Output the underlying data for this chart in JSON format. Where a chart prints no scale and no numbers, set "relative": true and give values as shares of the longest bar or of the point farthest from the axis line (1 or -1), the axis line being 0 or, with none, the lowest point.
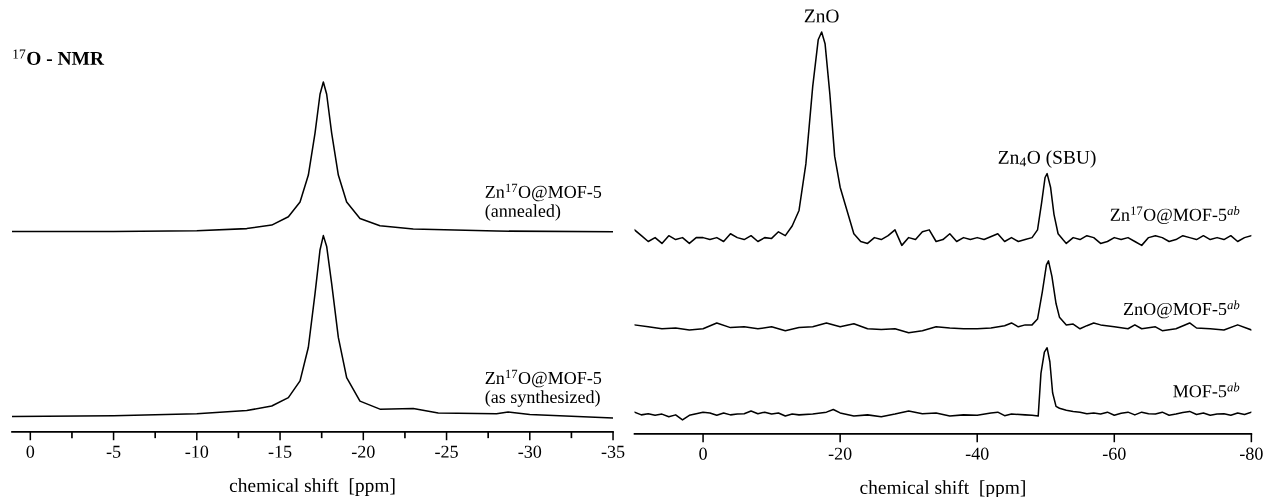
{
  "chart_data": [
    {
      "type": "line",
      "relative": true,
      "title": "$^{17}$O - NMR",
      "xlabel": "chemical shift  [ppm]",
      "xlim": [
        1.1,
        -35
      ],
      "xticks": [
        0,
        {
          "value": -2.5,
          "label": null
        },
        -5,
        {
          "value": -7.5,
          "label": null
        },
        -10,
        {
          "value": -12.5,
          "label": null
        },
        -15,
        {
          "value": -17.5,
          "label": null
        },
        -20,
        {
          "value": -22.5,
          "label": null
        },
        -25,
        {
          "value": -27.5,
          "label": null
        },
        -30,
        {
          "value": -32.5,
          "label": null
        },
        -35
      ],
      "series": [
        {
          "name": "Zn$^{17}$O@MOF-5\n(annealed)",
          "color": "#000000",
          "x": [
            1.1,
            -5,
            -10,
            -13,
            -14.5,
            -15.5,
            -16.2,
            -16.7,
            -17.1,
            -17.4,
            -17.6,
            -17.8,
            -18.1,
            -18.5,
            -19,
            -19.8,
            -21,
            -23,
            -28,
            -35
          ],
          "values": [
            0.573,
            0.573,
            0.575,
            0.581,
            0.591,
            0.615,
            0.657,
            0.734,
            0.854,
            0.965,
            1.0,
            0.965,
            0.854,
            0.734,
            0.657,
            0.61,
            0.589,
            0.58,
            0.574,
            0.572
          ]
        },
        {
          "name": "Zn$^{17}$O@MOF-5\n(as synthesized)",
          "color": "#000000",
          "x": [
            1.1,
            -5,
            -10,
            -13,
            -14.5,
            -15.5,
            -16.2,
            -16.7,
            -17.1,
            -17.4,
            -17.6,
            -17.8,
            -18.1,
            -18.5,
            -19,
            -19.8,
            -21,
            -23,
            -24.5,
            -28,
            -28.7,
            -30,
            -35
          ],
          "values": [
            0.044,
            0.046,
            0.052,
            0.061,
            0.074,
            0.098,
            0.146,
            0.242,
            0.395,
            0.52,
            0.561,
            0.53,
            0.424,
            0.27,
            0.155,
            0.088,
            0.065,
            0.067,
            0.054,
            0.052,
            0.057,
            0.05,
            0.04
          ]
        }
      ]
    },
    {
      "type": "line",
      "relative": true,
      "xlabel": "chemical shift  [ppm]",
      "xlim": [
        10,
        -80
      ],
      "xticks": [
        0,
        -20,
        -40,
        -60,
        -80
      ],
      "annotations": [
        {
          "text": "ZnO",
          "x": -17.3,
          "y": 1.0
        },
        {
          "text": "Zn$_{4}$O (SBU)",
          "x": -50.2,
          "y": 0.635
        }
      ],
      "series": [
        {
          "name": "Zn$^{17}$O@MOF-5$^{ab}$",
          "color": "#000000",
          "x": [
            10,
            9,
            8,
            7,
            6,
            5,
            4,
            3,
            2,
            1,
            0,
            -1,
            -2,
            -3,
            -4,
            -5,
            -6,
            -7,
            -8,
            -9,
            -10,
            -11,
            -12,
            -13,
            -14,
            -15,
            -16,
            -16.8,
            -17.3,
            -17.8,
            -18.5,
            -19.2,
            -20,
            -21,
            -22,
            -23,
            -24,
            -25,
            -26,
            -27,
            -28,
            -29,
            -30,
            -31,
            -32,
            -33,
            -34,
            -35,
            -36,
            -37,
            -38,
            -39,
            -40,
            -41,
            -43,
            -44,
            -45,
            -46,
            -47,
            -48,
            -48.8,
            -49.4,
            -49.9,
            -50.2,
            -50.7,
            -51.2,
            -51.8,
            -52.5,
            -53,
            -54,
            -55,
            -56,
            -57,
            -58,
            -59,
            -60,
            -61,
            -62,
            -63,
            -64,
            -65,
            -66,
            -67,
            -68,
            -69,
            -70,
            -71,
            -72,
            -73,
            -74,
            -75,
            -76,
            -77,
            -78,
            -79,
            -80
          ],
          "values": [
            0.49,
            0.475,
            0.46,
            0.47,
            0.455,
            0.475,
            0.465,
            0.47,
            0.455,
            0.47,
            0.47,
            0.465,
            0.47,
            0.46,
            0.48,
            0.47,
            0.465,
            0.475,
            0.46,
            0.47,
            0.468,
            0.485,
            0.475,
            0.5,
            0.54,
            0.66,
            0.86,
            0.98,
            1.0,
            0.97,
            0.84,
            0.68,
            0.6,
            0.54,
            0.48,
            0.46,
            0.455,
            0.47,
            0.465,
            0.475,
            0.49,
            0.45,
            0.47,
            0.465,
            0.485,
            0.49,
            0.46,
            0.465,
            0.48,
            0.46,
            0.47,
            0.465,
            0.47,
            0.465,
            0.48,
            0.46,
            0.47,
            0.46,
            0.465,
            0.47,
            0.49,
            0.56,
            0.625,
            0.635,
            0.6,
            0.53,
            0.48,
            0.465,
            0.455,
            0.47,
            0.465,
            0.475,
            0.47,
            0.455,
            0.46,
            0.47,
            0.465,
            0.47,
            0.46,
            0.45,
            0.47,
            0.475,
            0.47,
            0.46,
            0.465,
            0.475,
            0.47,
            0.465,
            0.475,
            0.465,
            0.47,
            0.465,
            0.475,
            0.46,
            0.47,
            0.475
          ]
        },
        {
          "name": "ZnO@MOF-5$^{ab}$",
          "color": "#000000",
          "x": [
            10,
            8,
            6,
            4,
            2,
            0,
            -2,
            -4,
            -6,
            -8,
            -10,
            -12,
            -14,
            -16,
            -18,
            -20,
            -22,
            -24,
            -26,
            -28,
            -30,
            -32,
            -34,
            -36,
            -38,
            -40,
            -42,
            -44,
            -45,
            -46,
            -47,
            -48,
            -48.8,
            -49.5,
            -50.1,
            -50.4,
            -50.9,
            -51.5,
            -52,
            -53,
            -54,
            -55,
            -56,
            -57,
            -58,
            -60,
            -62,
            -63,
            -64,
            -66,
            -67,
            -69,
            -71,
            -72,
            -74,
            -76,
            -78,
            -80
          ],
          "values": [
            0.245,
            0.24,
            0.235,
            0.237,
            0.232,
            0.235,
            0.25,
            0.238,
            0.24,
            0.235,
            0.24,
            0.23,
            0.238,
            0.24,
            0.25,
            0.24,
            0.248,
            0.235,
            0.233,
            0.235,
            0.225,
            0.23,
            0.24,
            0.237,
            0.235,
            0.235,
            0.237,
            0.243,
            0.25,
            0.24,
            0.245,
            0.245,
            0.26,
            0.33,
            0.4,
            0.41,
            0.37,
            0.3,
            0.265,
            0.245,
            0.247,
            0.235,
            0.243,
            0.25,
            0.245,
            0.24,
            0.235,
            0.245,
            0.235,
            0.24,
            0.23,
            0.235,
            0.25,
            0.237,
            0.235,
            0.232,
            0.245,
            0.232
          ]
        },
        {
          "name": "MOF-5$^{ab}$",
          "color": "#000000",
          "x": [
            10,
            9,
            8,
            7,
            6,
            5,
            4,
            3,
            2,
            1,
            0,
            -1,
            -2,
            -3,
            -4,
            -5,
            -6,
            -7,
            -8,
            -9,
            -10,
            -11,
            -12,
            -13,
            -14,
            -16,
            -18,
            -19,
            -20,
            -22,
            -24,
            -26,
            -28,
            -30,
            -32,
            -34,
            -36,
            -38,
            -40,
            -42,
            -43,
            -44,
            -45,
            -47,
            -48,
            -48.9,
            -49.3,
            -49.8,
            -50.2,
            -50.6,
            -51,
            -51.5,
            -52,
            -53,
            -54,
            -55,
            -56,
            -57,
            -58,
            -59,
            -60,
            -61,
            -62,
            -63,
            -64,
            -65,
            -66,
            -67,
            -68,
            -69,
            -70,
            -71,
            -72,
            -73,
            -74,
            -75,
            -76,
            -77,
            -78,
            -79,
            -80
          ],
          "values": [
            0.02,
            0.013,
            0.016,
            0.012,
            0.015,
            0.008,
            0.013,
            0.0,
            0.012,
            0.016,
            0.02,
            0.018,
            0.012,
            0.018,
            0.013,
            0.015,
            0.016,
            0.023,
            0.016,
            0.02,
            0.015,
            0.018,
            0.01,
            0.015,
            0.013,
            0.015,
            0.02,
            0.027,
            0.018,
            0.01,
            0.013,
            0.008,
            0.015,
            0.023,
            0.016,
            0.018,
            0.01,
            0.013,
            0.012,
            0.018,
            0.02,
            0.011,
            0.015,
            0.013,
            0.012,
            0.01,
            0.12,
            0.175,
            0.186,
            0.15,
            0.07,
            0.035,
            0.03,
            0.025,
            0.022,
            0.02,
            0.016,
            0.018,
            0.015,
            0.02,
            0.012,
            0.017,
            0.02,
            0.013,
            0.02,
            0.016,
            0.015,
            0.02,
            0.012,
            0.015,
            0.019,
            0.022,
            0.014,
            0.018,
            0.012,
            0.015,
            0.016,
            0.012,
            0.018,
            0.014,
            0.02
          ]
        }
      ]
    }
  ]
}
